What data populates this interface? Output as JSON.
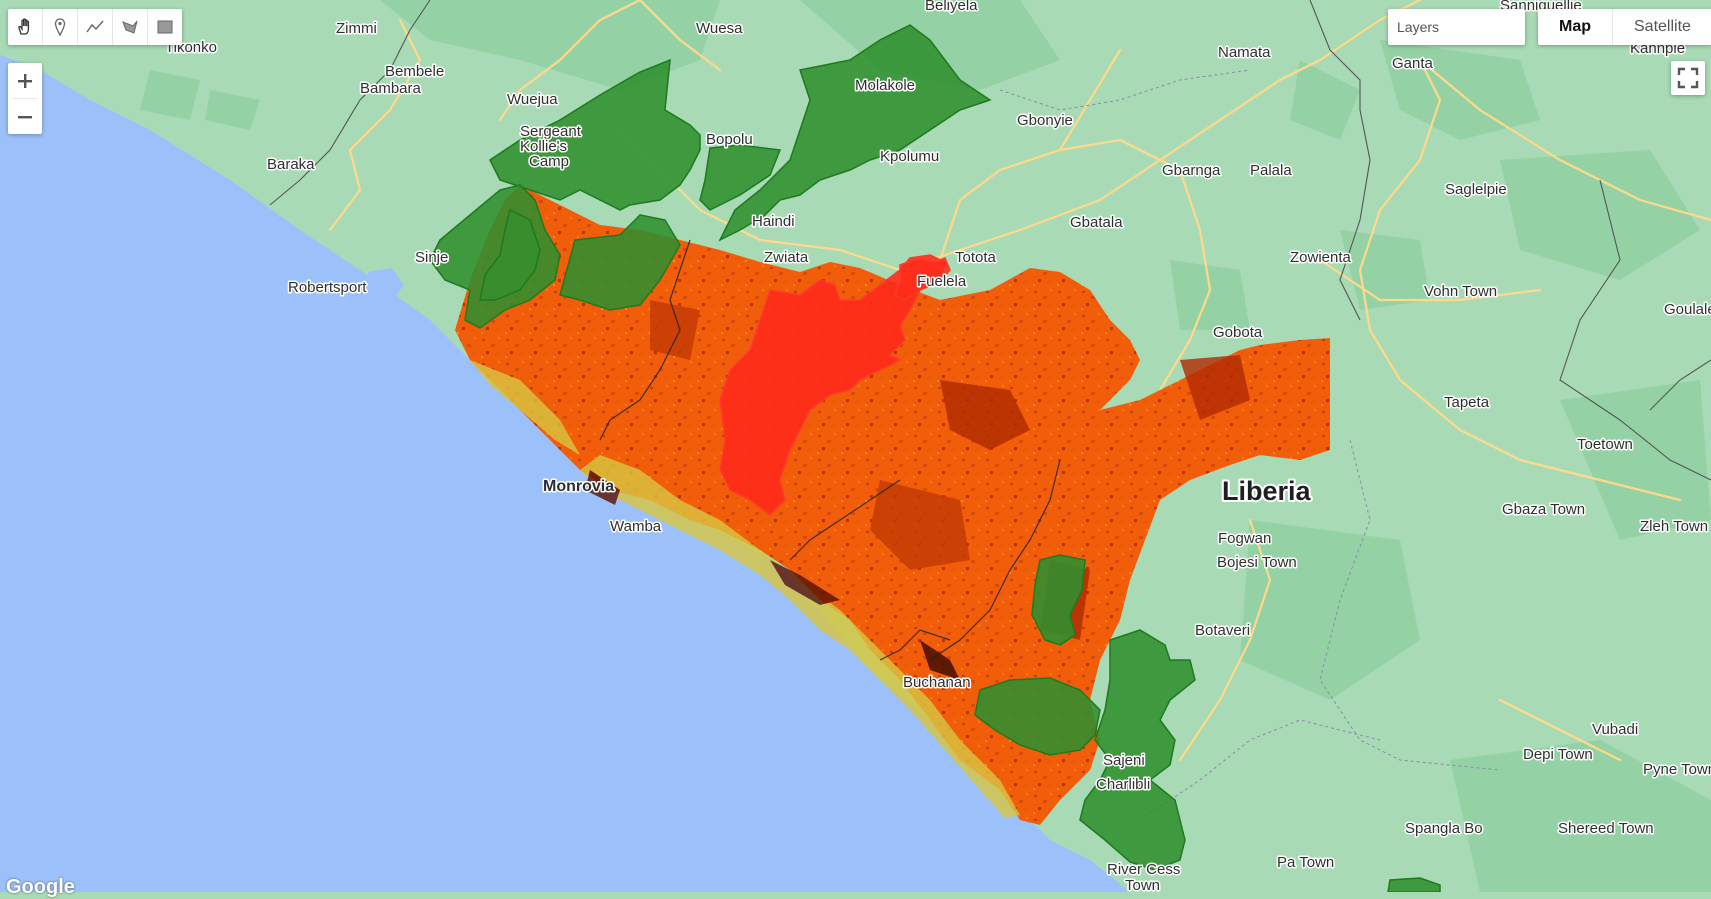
{
  "map": {
    "type_buttons": [
      "Map",
      "Satellite"
    ],
    "active_type": "Map",
    "layers_label": "Layers",
    "logo_text": "Google",
    "country_label": "Liberia",
    "colors": {
      "ocean": "#9cc0f9",
      "land": "#a8dab5",
      "forest": "#94d2a5",
      "raster": "#f25d0a",
      "raster_dark": "#b02a02",
      "raster_light": "#d8c640",
      "protected_area": "#2f8f2f",
      "highlight_area": "#ff2a1a",
      "road": "#ffd98a",
      "border": "#555555"
    },
    "places": {
      "tikonko": "Tikonko",
      "zimmi": "Zimmi",
      "wuesa": "Wuesa",
      "beliyela": "Beliyela",
      "sanniquellie": "Sanniquellie",
      "bembele": "Bembele",
      "bambara": "Bambara",
      "namata": "Namata",
      "ganta": "Ganta",
      "kahnple": "Kahnple",
      "wuejua": "Wuejua",
      "molakole": "Molakole",
      "gbonyie": "Gbonyie",
      "baraka": "Baraka",
      "sergeant_kollie": "Sergeant",
      "kollies_camp_line": "Kollie's",
      "camp": "Camp",
      "bopolu": "Bopolu",
      "kpolumu": "Kpolumu",
      "gbarnga": "Gbarnga",
      "palala": "Palala",
      "saglelpie": "Saglelpie",
      "haindi": "Haindi",
      "sinje": "Sinje",
      "zwiata": "Zwiata",
      "totota": "Totota",
      "gbatala": "Gbatala",
      "zowienta": "Zowienta",
      "robertsport": "Robertsport",
      "fuelela": "Fuelela",
      "vohn_town": "Vohn Town",
      "gobota": "Gobota",
      "goulale": "Goulale",
      "tapeta": "Tapeta",
      "monrovia": "Monrovia",
      "toetown": "Toetown",
      "wamba": "Wamba",
      "fogwan": "Fogwan",
      "gbaza_town": "Gbaza Town",
      "zleh_town": "Zleh Town",
      "bojesi_town": "Bojesi Town",
      "botaveri": "Botaveri",
      "buchanan": "Buchanan",
      "vubadi": "Vubadi",
      "depi_town": "Depi Town",
      "sajeni": "Sajeni",
      "pyne_town": "Pyne Town",
      "charlibli": "Charlibli",
      "spangla_bo": "Spangla Bo",
      "shereed_town": "Shereed Town",
      "pa_town": "Pa Town",
      "river_cess": "River Cess",
      "town": "Town"
    }
  }
}
